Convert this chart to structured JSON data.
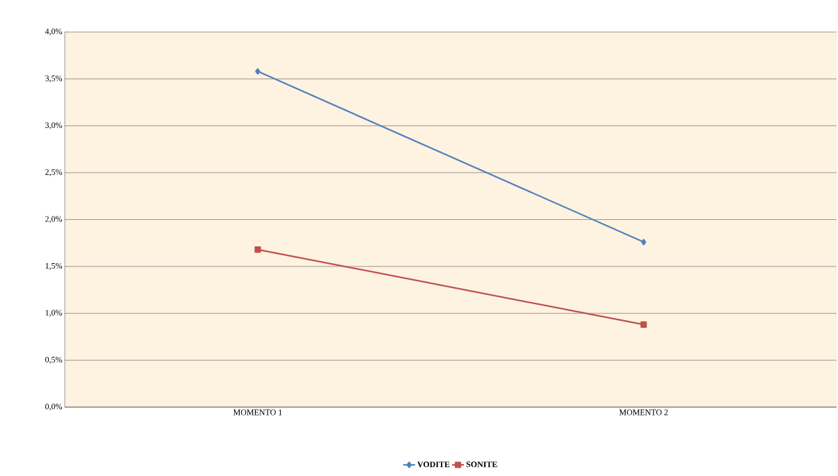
{
  "chart_data": {
    "type": "line",
    "categories": [
      "MOMENTO 1",
      "MOMENTO 2"
    ],
    "series": [
      {
        "name": "VODITE",
        "color": "#4f81bd",
        "values": [
          3.58,
          1.76
        ],
        "marker": "diamond"
      },
      {
        "name": "SONITE",
        "color": "#c0504d",
        "values": [
          1.68,
          0.88
        ],
        "marker": "square"
      }
    ],
    "ylim": [
      0,
      4
    ],
    "yticks": [
      {
        "value": 0,
        "label": "0,0%"
      },
      {
        "value": 0.5,
        "label": "0,5%"
      },
      {
        "value": 1,
        "label": "1,0%"
      },
      {
        "value": 1.5,
        "label": "1,5%"
      },
      {
        "value": 2,
        "label": "2,0%"
      },
      {
        "value": 2.5,
        "label": "2,5%"
      },
      {
        "value": 3,
        "label": "3,0%"
      },
      {
        "value": 3.5,
        "label": "3,5%"
      },
      {
        "value": 4,
        "label": "4,0%"
      }
    ],
    "grid": "y",
    "legend": "bottom",
    "line_style": "solid"
  }
}
